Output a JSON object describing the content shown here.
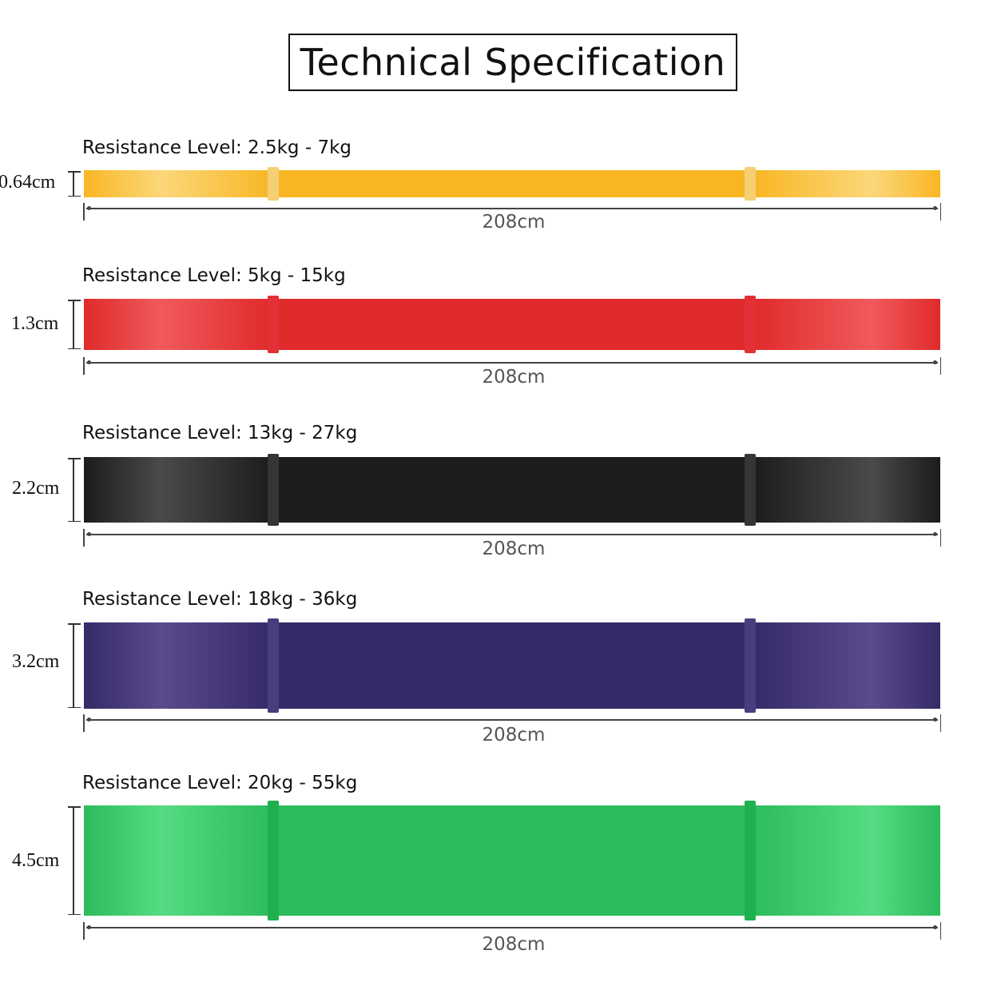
{
  "title": "Technical Specification",
  "bands": [
    {
      "resistance_label": "Resistance Level: 2.5kg - 7kg",
      "width_label": "0.64cm",
      "length_label": "208cm",
      "color": "#f9b624",
      "highlight": "#fbd77a",
      "strap_color": "#f5cf74"
    },
    {
      "resistance_label": "Resistance Level: 5kg - 15kg",
      "width_label": "1.3cm",
      "length_label": "208cm",
      "color": "#e02a2b",
      "highlight": "#f05a5c",
      "strap_color": "#e23036"
    },
    {
      "resistance_label": "Resistance Level: 13kg - 27kg",
      "width_label": "2.2cm",
      "length_label": "208cm",
      "color": "#1c1c1c",
      "highlight": "#4a4a4a",
      "strap_color": "#353535"
    },
    {
      "resistance_label": "Resistance Level: 18kg - 36kg",
      "width_label": "3.2cm",
      "length_label": "208cm",
      "color": "#362a68",
      "highlight": "#5a4b8c",
      "strap_color": "#4a3d7e"
    },
    {
      "resistance_label": "Resistance Level: 20kg - 55kg",
      "width_label": "4.5cm",
      "length_label": "208cm",
      "color": "#2dbb5c",
      "highlight": "#55dc82",
      "strap_color": "#21b04f"
    }
  ]
}
